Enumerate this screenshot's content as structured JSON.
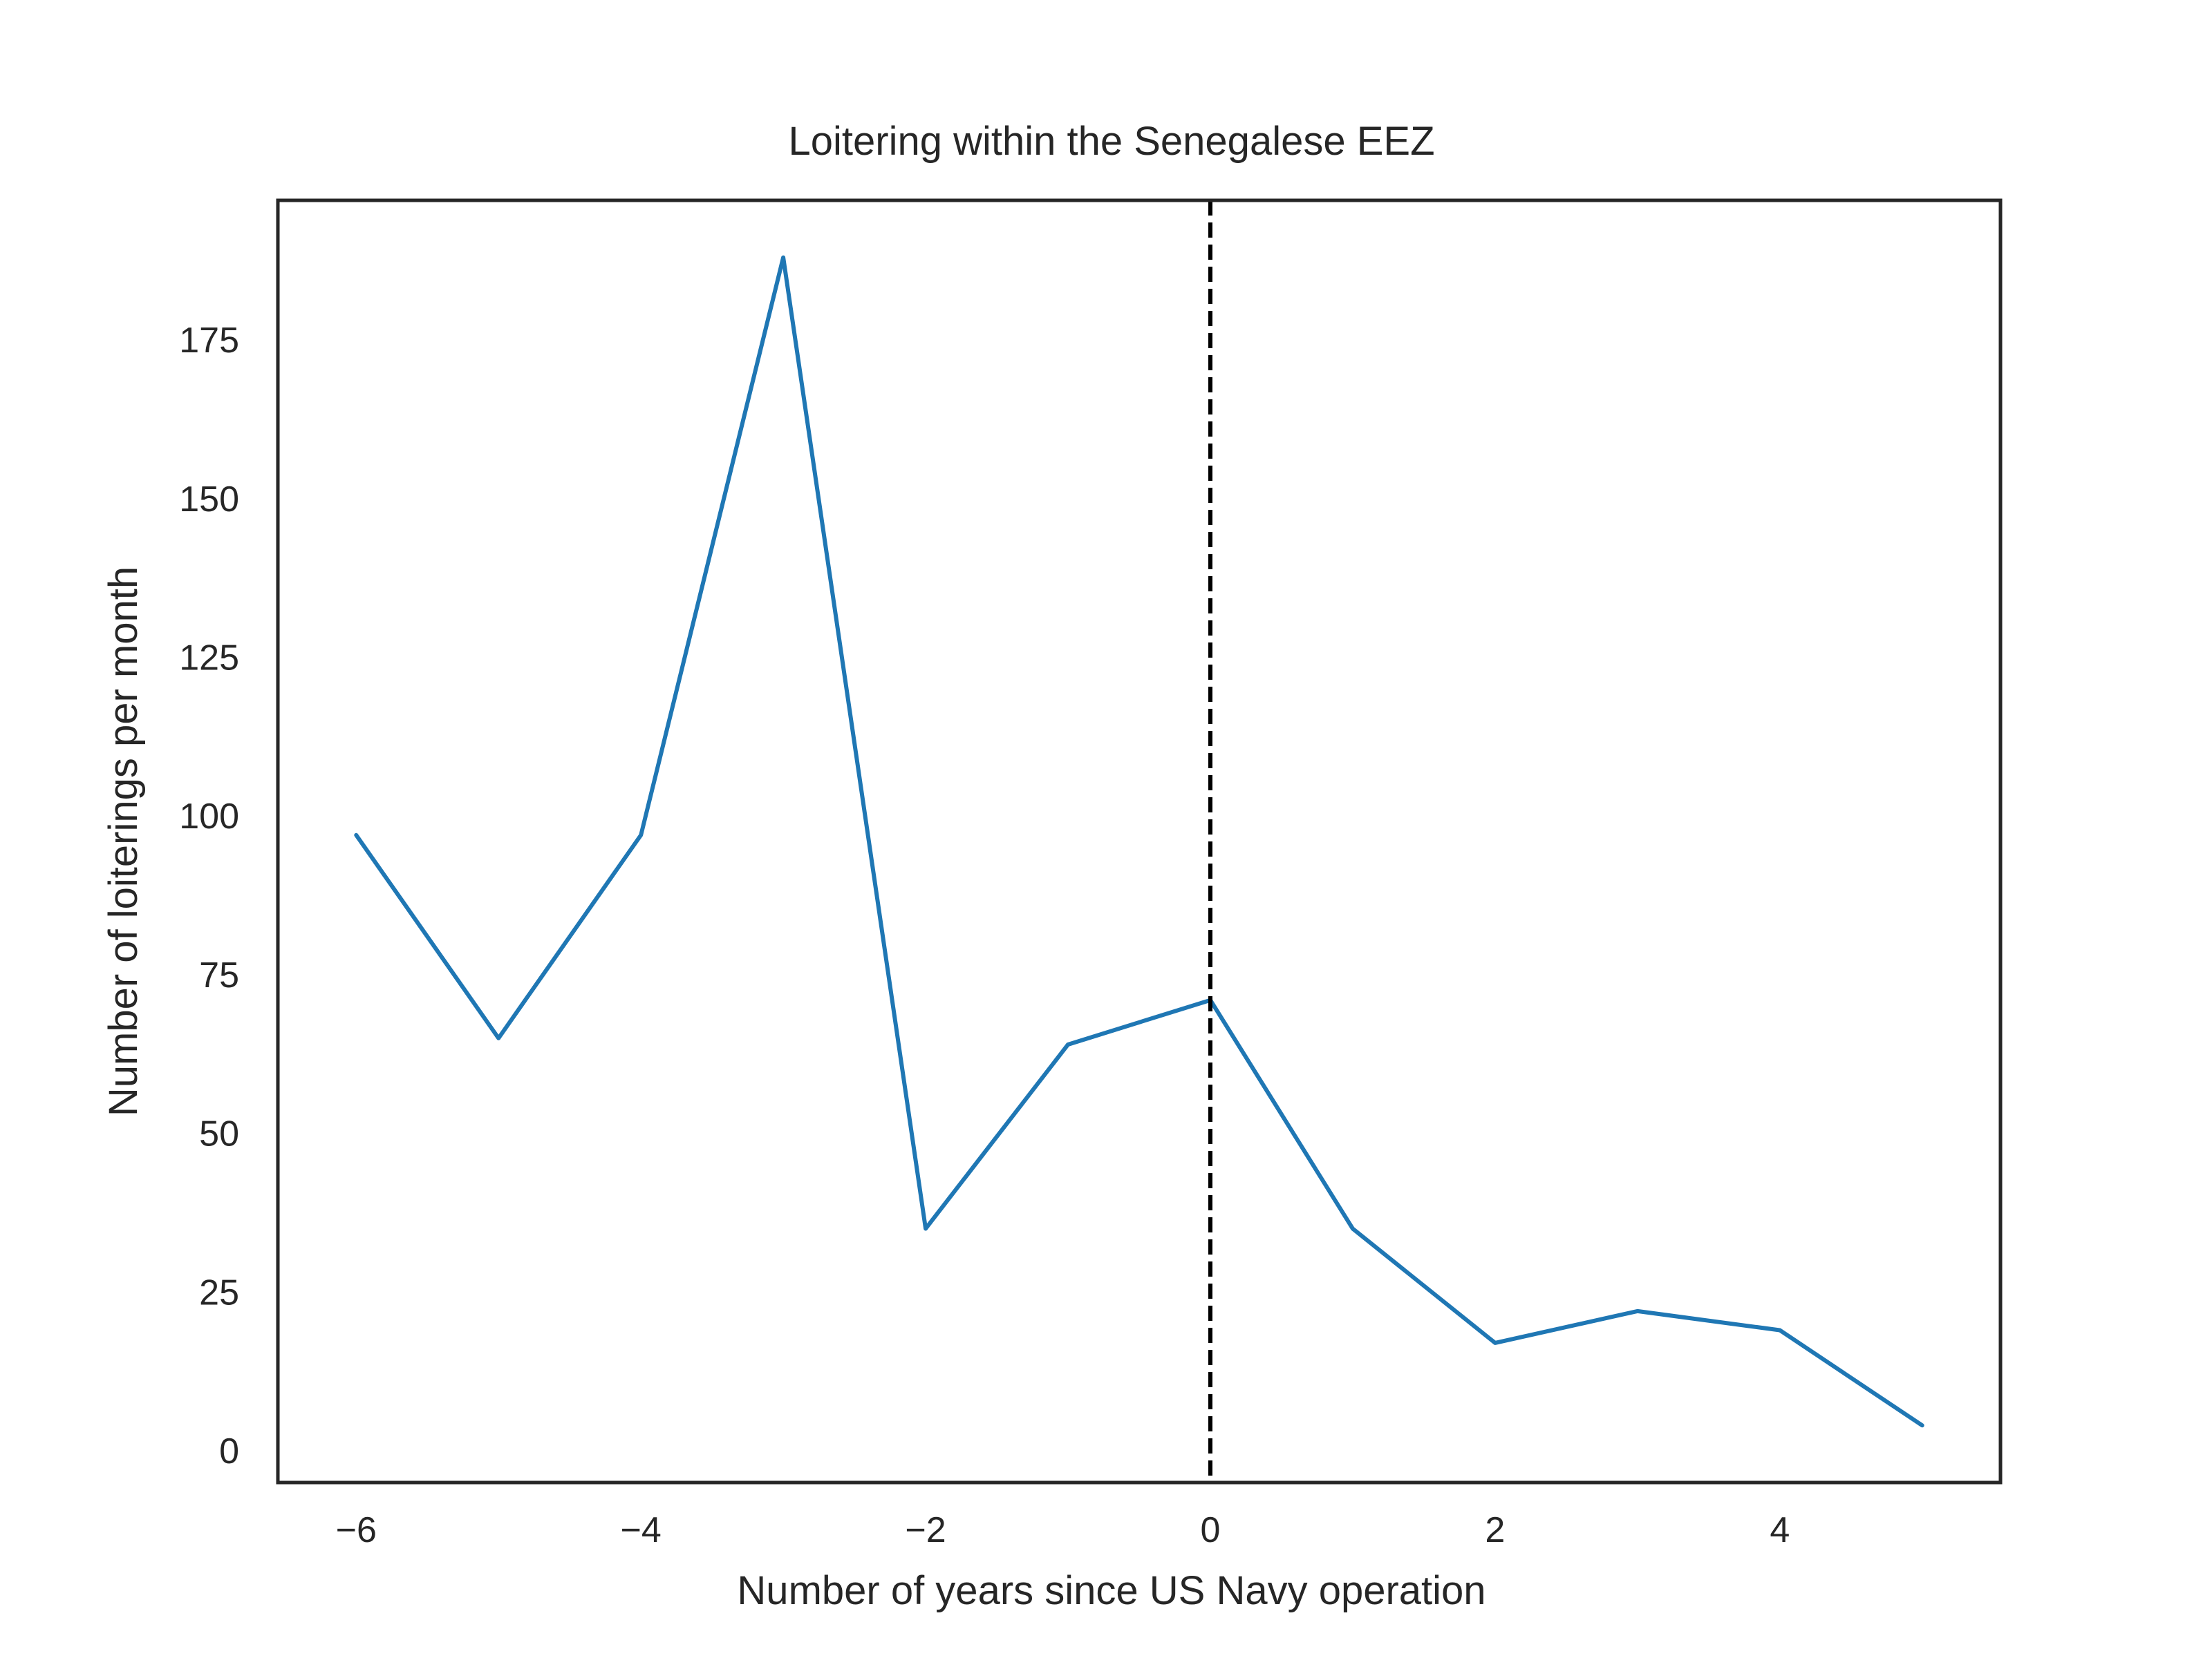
{
  "chart_data": {
    "type": "line",
    "title": "Loitering within the Senegalese EEZ",
    "xlabel": "Number of years since US Navy operation",
    "ylabel": "Number of loiterings per month",
    "xlim": [
      -6.55,
      5.55
    ],
    "ylim": [
      -5,
      197
    ],
    "xticks": [
      -6,
      -4,
      -2,
      0,
      2,
      4
    ],
    "xtick_labels": [
      "−6",
      "−4",
      "−2",
      "0",
      "2",
      "4"
    ],
    "yticks": [
      0,
      25,
      50,
      75,
      100,
      125,
      150,
      175
    ],
    "ytick_labels": [
      "0",
      "25",
      "50",
      "75",
      "100",
      "125",
      "150",
      "175"
    ],
    "grid": false,
    "series": [
      {
        "color": "#1f77b4",
        "x": [
          -6,
          -5,
          -4,
          -3,
          -2,
          -1,
          0,
          1,
          2,
          3,
          4,
          5
        ],
        "y": [
          97,
          65,
          97,
          188,
          35,
          64,
          71,
          35,
          17,
          22,
          19,
          4
        ]
      }
    ],
    "reference_lines": [
      {
        "orientation": "vertical",
        "x": 0,
        "style": "dashed",
        "color": "#000000"
      }
    ],
    "frame_color": "#262626"
  }
}
